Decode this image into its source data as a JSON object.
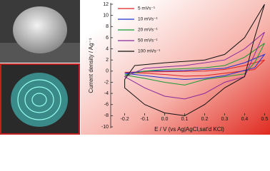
{
  "chart_data": {
    "type": "line",
    "ylabel": "Current density / Ag⁻¹",
    "xlabel": "E / V (vs Ag|AgCl,sat'd KCl)",
    "xlim": [
      -0.27,
      0.52
    ],
    "ylim": [
      -10,
      12
    ],
    "xticks": [
      -0.2,
      -0.1,
      {
        "value": 0,
        "label": "0.0"
      },
      0.1,
      0.2,
      0.3,
      0.4,
      0.5
    ],
    "yticks": [
      12,
      10,
      8,
      6,
      4,
      2,
      0,
      -2,
      -4,
      -6,
      -8,
      -10
    ],
    "series": [
      {
        "name": "5 mVs⁻¹",
        "color": "#e02020",
        "x": [
          -0.2,
          0,
          0.2,
          0.3,
          0.4,
          0.5,
          0.45,
          0.3,
          0.2,
          0.1,
          0,
          -0.1,
          -0.2
        ],
        "values": [
          -0.2,
          -0.1,
          0,
          0.3,
          1,
          2,
          0.3,
          -0.4,
          -0.8,
          -0.9,
          -0.6,
          -0.4,
          -0.2
        ]
      },
      {
        "name": "10 mVs⁻¹",
        "color": "#2030d0",
        "x": [
          -0.2,
          -0.1,
          0.1,
          0.3,
          0.4,
          0.5,
          0.45,
          0.3,
          0.2,
          0.1,
          0,
          -0.1,
          -0.2
        ],
        "values": [
          -0.4,
          0,
          0.1,
          0.5,
          1.5,
          3,
          0.6,
          -0.8,
          -1.3,
          -1.5,
          -1.2,
          -0.8,
          -0.4
        ]
      },
      {
        "name": "20 mVs⁻¹",
        "color": "#1a9a30",
        "x": [
          -0.2,
          -0.1,
          0,
          0.2,
          0.3,
          0.4,
          0.5,
          0.45,
          0.4,
          0.3,
          0.2,
          0.1,
          0,
          -0.1,
          -0.2
        ],
        "values": [
          -0.7,
          0,
          0.3,
          0.6,
          1,
          2.5,
          5,
          1.5,
          -0.5,
          -1,
          -1.5,
          -2.5,
          -2,
          -1.3,
          -0.7
        ]
      },
      {
        "name": "50 mVs⁻¹",
        "color": "#8a2a9a",
        "x": [
          -0.2,
          -0.1,
          0.1,
          0.3,
          0.4,
          0.5,
          0.45,
          0.4,
          0.3,
          0.2,
          0.1,
          0,
          -0.1,
          -0.2
        ],
        "values": [
          -1,
          0.5,
          1,
          2,
          4,
          7,
          3,
          -1,
          -2,
          -4,
          -5,
          -4.5,
          -3,
          -1
        ]
      },
      {
        "name": "100 mVs⁻¹",
        "color": "#111111",
        "x": [
          -0.2,
          -0.15,
          0,
          0.2,
          0.3,
          0.4,
          0.5,
          0.45,
          0.4,
          0.3,
          0.2,
          0.1,
          0,
          -0.1,
          -0.2
        ],
        "values": [
          -1.5,
          1,
          1.5,
          2,
          3,
          6,
          12,
          6,
          -1,
          -3,
          -6,
          -8,
          -7.5,
          -6,
          -3
        ]
      }
    ]
  }
}
